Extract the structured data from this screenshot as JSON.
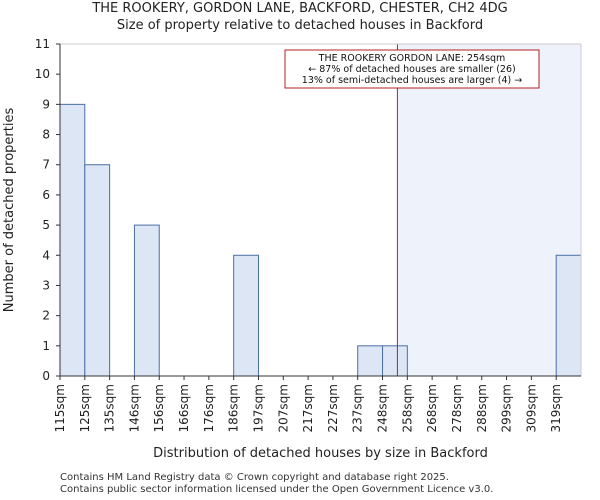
{
  "header": {
    "title": "THE ROOKERY, GORDON LANE, BACKFORD, CHESTER, CH2 4DG",
    "subtitle": "Size of property relative to detached houses in Backford"
  },
  "footer": {
    "line1": "Contains HM Land Registry data © Crown copyright and database right 2025.",
    "line2": "Contains public sector information licensed under the Open Government Licence v3.0."
  },
  "colors": {
    "bar_fill": "#dce6f5",
    "bar_stroke": "#4a6fa5",
    "highlight_region": "#eef2fb",
    "marker_line": "#b22222"
  },
  "chart_data": {
    "type": "bar",
    "title": "THE ROOKERY, GORDON LANE, BACKFORD, CHESTER, CH2 4DG",
    "subtitle": "Size of property relative to detached houses in Backford",
    "xlabel": "Distribution of detached houses by size in Backford",
    "ylabel": "Number of detached properties",
    "categories": [
      "115sqm",
      "125sqm",
      "135sqm",
      "146sqm",
      "156sqm",
      "166sqm",
      "176sqm",
      "186sqm",
      "197sqm",
      "207sqm",
      "217sqm",
      "227sqm",
      "237sqm",
      "248sqm",
      "258sqm",
      "268sqm",
      "278sqm",
      "288sqm",
      "299sqm",
      "309sqm",
      "319sqm"
    ],
    "values": [
      9,
      7,
      0,
      5,
      0,
      0,
      0,
      4,
      0,
      0,
      0,
      0,
      1,
      1,
      0,
      0,
      0,
      0,
      0,
      0,
      4
    ],
    "ylim": [
      0,
      11
    ],
    "yticks": [
      0,
      1,
      2,
      3,
      4,
      5,
      6,
      7,
      8,
      9,
      10,
      11
    ],
    "marker": {
      "value_sqm": 254,
      "annotation": [
        "THE ROOKERY GORDON LANE: 254sqm",
        "← 87% of detached houses are smaller (26)",
        "13% of semi-detached houses are larger (4) →"
      ]
    },
    "grid": false,
    "legend": "none"
  }
}
